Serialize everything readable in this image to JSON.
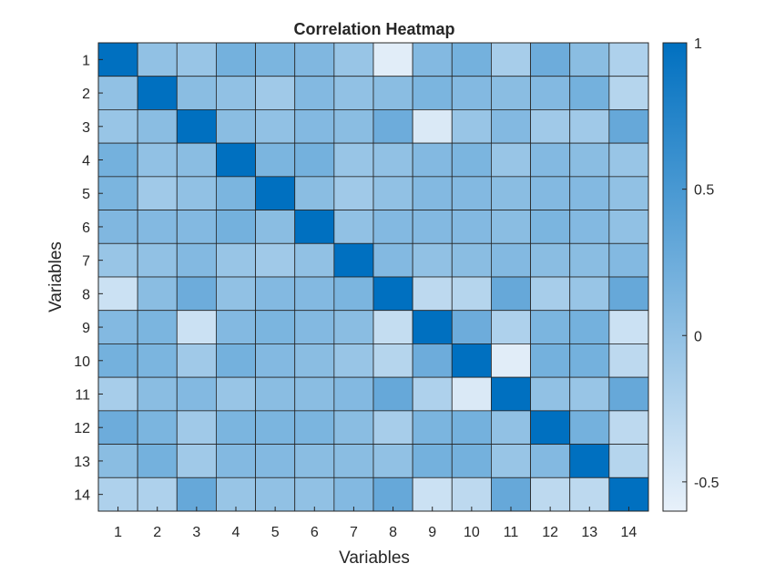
{
  "chart_data": {
    "type": "heatmap",
    "title": "Correlation Heatmap",
    "xlabel": "Variables",
    "ylabel": "Variables",
    "x_categories": [
      "1",
      "2",
      "3",
      "4",
      "5",
      "6",
      "7",
      "8",
      "9",
      "10",
      "11",
      "12",
      "13",
      "14"
    ],
    "y_categories": [
      "1",
      "2",
      "3",
      "4",
      "5",
      "6",
      "7",
      "8",
      "9",
      "10",
      "11",
      "12",
      "13",
      "14"
    ],
    "color_range": [
      -0.6,
      1
    ],
    "colorbar_ticks": [
      {
        "value": 1,
        "label": "1"
      },
      {
        "value": 0.5,
        "label": "0.5"
      },
      {
        "value": 0,
        "label": "0"
      },
      {
        "value": -0.5,
        "label": "-0.5"
      }
    ],
    "colormap": [
      "#e8f1fa",
      "#0070c0"
    ],
    "grid": false,
    "values": [
      [
        1.0,
        0.0,
        -0.05,
        0.2,
        0.15,
        0.12,
        -0.05,
        -0.55,
        0.1,
        0.2,
        -0.15,
        0.25,
        0.05,
        -0.2
      ],
      [
        0.0,
        1.0,
        0.05,
        0.0,
        -0.1,
        0.1,
        0.0,
        0.05,
        0.15,
        0.1,
        0.05,
        0.1,
        0.2,
        -0.25
      ],
      [
        -0.05,
        0.05,
        1.0,
        0.05,
        0.0,
        0.1,
        0.05,
        0.25,
        -0.5,
        -0.05,
        0.1,
        -0.1,
        -0.1,
        0.3
      ],
      [
        0.2,
        0.0,
        0.05,
        1.0,
        0.15,
        0.2,
        -0.05,
        0.0,
        0.1,
        0.15,
        -0.05,
        0.1,
        0.05,
        -0.05
      ],
      [
        0.15,
        -0.1,
        0.0,
        0.15,
        1.0,
        0.05,
        -0.1,
        0.0,
        0.1,
        0.1,
        0.05,
        0.1,
        0.1,
        0.0
      ],
      [
        0.12,
        0.1,
        0.1,
        0.2,
        0.05,
        1.0,
        0.0,
        0.1,
        0.1,
        0.1,
        0.05,
        0.15,
        0.1,
        0.0
      ],
      [
        -0.05,
        0.0,
        0.1,
        -0.05,
        -0.1,
        0.0,
        1.0,
        0.1,
        0.0,
        0.05,
        0.1,
        0.05,
        0.05,
        0.1
      ],
      [
        -0.4,
        0.05,
        0.25,
        0.0,
        0.1,
        0.1,
        0.15,
        1.0,
        -0.3,
        -0.25,
        0.3,
        -0.15,
        -0.05,
        0.3
      ],
      [
        0.1,
        0.15,
        -0.4,
        0.1,
        0.15,
        0.1,
        0.05,
        -0.35,
        1.0,
        0.25,
        -0.2,
        0.15,
        0.2,
        -0.4
      ],
      [
        0.2,
        0.15,
        -0.1,
        0.2,
        0.1,
        0.05,
        -0.05,
        -0.25,
        0.25,
        1.0,
        -0.55,
        0.2,
        0.2,
        -0.3
      ],
      [
        -0.15,
        0.05,
        0.1,
        -0.05,
        0.05,
        0.05,
        0.1,
        0.3,
        -0.2,
        -0.5,
        1.0,
        0.0,
        -0.05,
        0.3
      ],
      [
        0.25,
        0.15,
        -0.1,
        0.15,
        0.15,
        0.15,
        0.05,
        -0.15,
        0.15,
        0.2,
        0.0,
        1.0,
        0.2,
        -0.3
      ],
      [
        0.05,
        0.2,
        -0.1,
        0.1,
        0.1,
        0.05,
        0.05,
        0.0,
        0.2,
        0.2,
        -0.05,
        0.1,
        1.0,
        -0.25
      ],
      [
        -0.2,
        -0.2,
        0.3,
        -0.05,
        0.0,
        0.0,
        0.1,
        0.3,
        -0.4,
        -0.3,
        0.3,
        -0.3,
        -0.3,
        1.0
      ]
    ]
  }
}
